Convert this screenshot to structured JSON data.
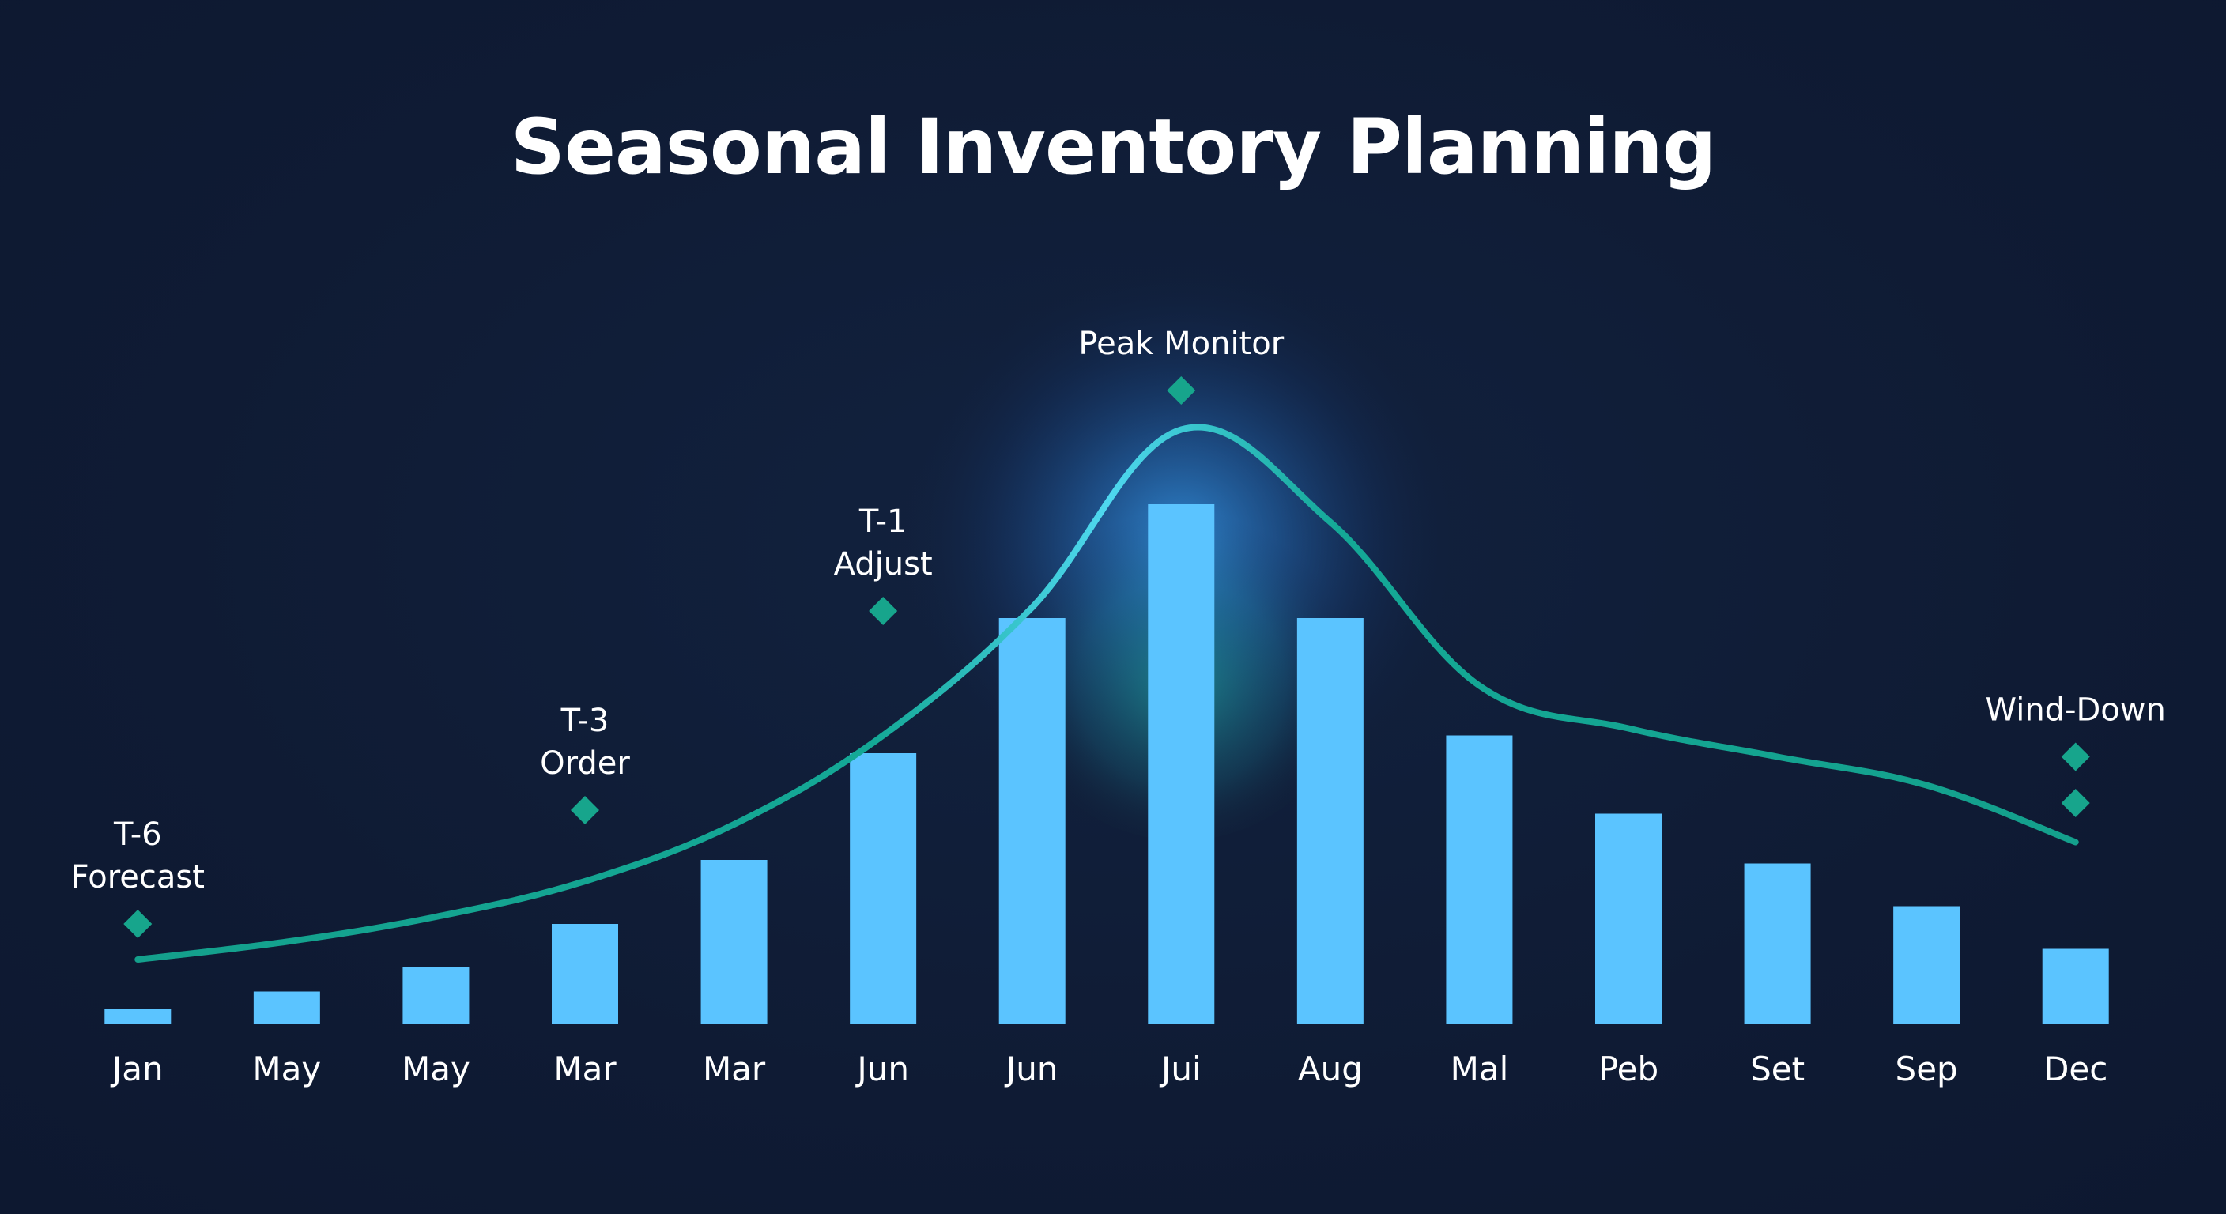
{
  "chart_data": {
    "type": "bar",
    "title": "Seasonal Inventory Planning",
    "categories": [
      "Jan",
      "May",
      "May",
      "Mar",
      "Mar",
      "Jun",
      "Jun",
      "Jui",
      "Aug",
      "Mal",
      "Peb",
      "Set",
      "Sep",
      "Dec"
    ],
    "series": [
      {
        "values": [
          2,
          4.5,
          8,
          14,
          23,
          38,
          57,
          73,
          57,
          40.5,
          29.5,
          22.5,
          16.5,
          10.5
        ]
      }
    ],
    "trend_line": {
      "type": "line",
      "values": [
        9,
        11.5,
        15,
        20,
        28,
        40.5,
        58.5,
        83.5,
        70.5,
        47.5,
        41.5,
        37.5,
        33.5,
        25.5
      ]
    },
    "phase_markers": [
      {
        "lines": [
          "T-6",
          "Forecast"
        ],
        "category_index": 0,
        "level": 14,
        "markers": [
          14
        ]
      },
      {
        "lines": [
          "T-3",
          "Order"
        ],
        "category_index": 3,
        "level": 30,
        "markers": [
          30
        ]
      },
      {
        "lines": [
          "T-1",
          "Adjust"
        ],
        "category_index": 5,
        "level": 58,
        "markers": [
          58
        ]
      },
      {
        "lines": [
          "Peak Monitor"
        ],
        "category_index": 7,
        "level": 89,
        "markers": [
          89
        ]
      },
      {
        "lines": [
          "Wind-Down"
        ],
        "category_index": 13,
        "level": 37.5,
        "markers": [
          37.5,
          31
        ]
      }
    ],
    "ylim": [
      0,
      100
    ],
    "grid": false,
    "legend": "none",
    "colors": {
      "background": "#0f1b34",
      "bar": "#5bc4ff",
      "line": "#14a08c",
      "line_highlight": "#4fd8f0",
      "marker": "#17a58c",
      "glow": "#3aa8ff",
      "text": "#ffffff"
    }
  }
}
